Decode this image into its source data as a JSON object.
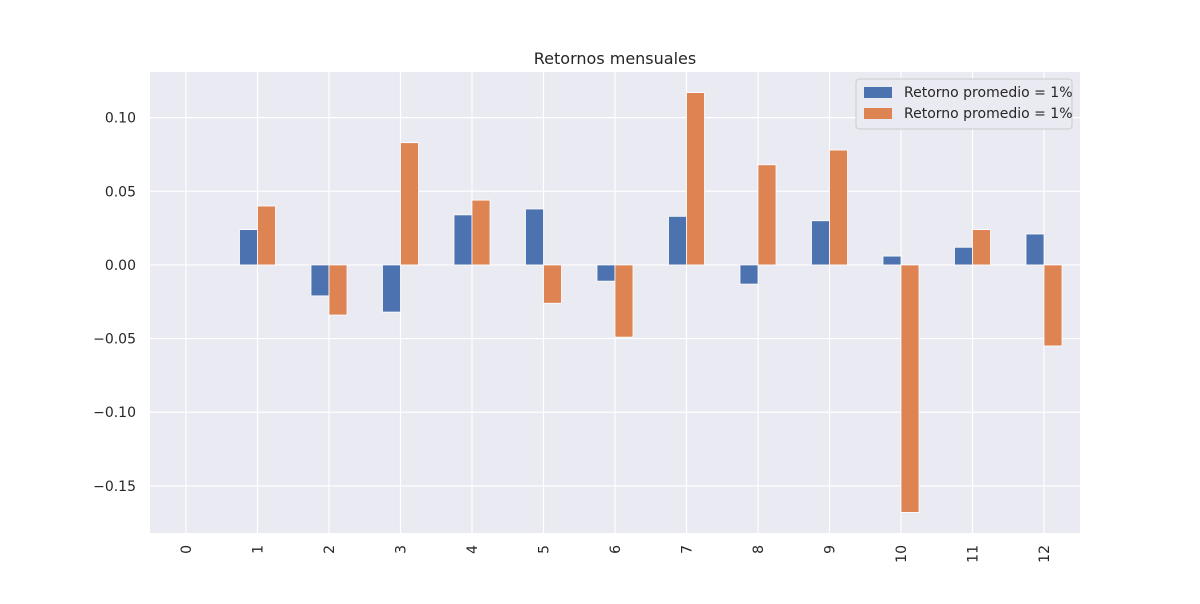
{
  "chart_data": {
    "type": "bar",
    "title": "Retornos mensuales",
    "xlabel": "",
    "ylabel": "",
    "categories": [
      "0",
      "1",
      "2",
      "3",
      "4",
      "5",
      "6",
      "7",
      "8",
      "9",
      "10",
      "11",
      "12"
    ],
    "series": [
      {
        "name": "Retorno promedio = 1%",
        "color": "#4C72B0",
        "values": [
          0,
          0.024,
          -0.021,
          -0.032,
          0.034,
          0.038,
          -0.011,
          0.033,
          -0.013,
          0.03,
          0.006,
          0.012,
          0.021
        ]
      },
      {
        "name": "Retorno promedio = 1%",
        "color": "#DD8452",
        "values": [
          0,
          0.04,
          -0.034,
          0.083,
          0.044,
          -0.026,
          -0.049,
          0.117,
          0.068,
          0.078,
          -0.168,
          0.024,
          -0.055
        ]
      }
    ],
    "ylim": [
      -0.182,
      0.131
    ],
    "yticks": [
      0.1,
      0.05,
      0.0,
      -0.05,
      -0.1,
      -0.15
    ],
    "ytick_labels": [
      "0.10",
      "0.05",
      "0.00",
      "−0.05",
      "−0.10",
      "−0.15"
    ],
    "grid": true,
    "legend_position": "top-right",
    "background_color": "#EAEAF2"
  }
}
